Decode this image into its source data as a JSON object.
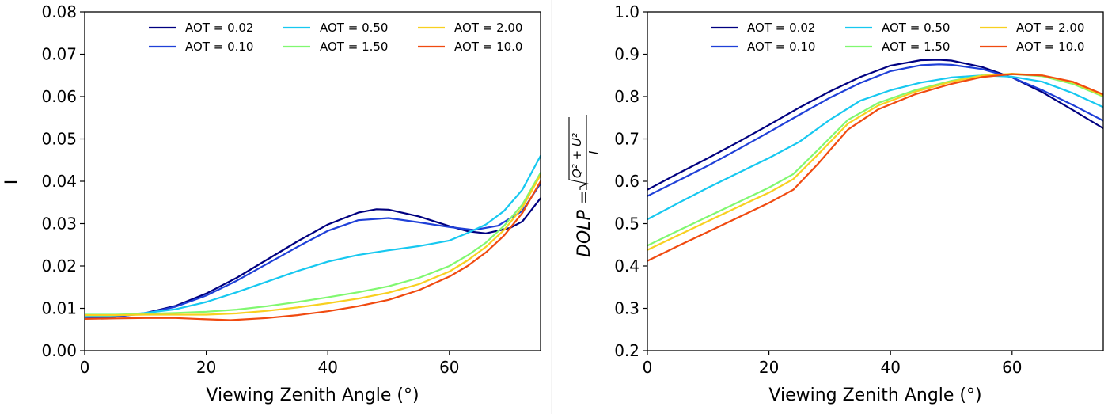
{
  "chart_data": [
    {
      "type": "line",
      "xlabel": "Viewing Zenith Angle (°)",
      "ylabel": "I",
      "xlim": [
        0,
        75
      ],
      "ylim": [
        0.0,
        0.08
      ],
      "xticks": [
        "0",
        "20",
        "40",
        "60"
      ],
      "yticks": [
        "0.00",
        "0.01",
        "0.02",
        "0.03",
        "0.04",
        "0.05",
        "0.06",
        "0.07",
        "0.08"
      ],
      "grid": false,
      "legend": "top-right",
      "series": [
        {
          "name": "AOT = 0.02",
          "color": "#000080",
          "x": [
            0,
            5,
            10,
            15,
            20,
            25,
            30,
            35,
            40,
            45,
            48,
            50,
            55,
            60,
            63,
            66,
            70,
            72,
            75
          ],
          "y": [
            0.0077,
            0.008,
            0.0089,
            0.0106,
            0.0135,
            0.0172,
            0.0215,
            0.0258,
            0.0298,
            0.0326,
            0.0334,
            0.0333,
            0.0317,
            0.0294,
            0.0282,
            0.0277,
            0.029,
            0.0305,
            0.036
          ]
        },
        {
          "name": "AOT = 0.10",
          "color": "#1f40d8",
          "x": [
            0,
            5,
            10,
            15,
            20,
            25,
            30,
            35,
            40,
            45,
            50,
            55,
            60,
            64,
            68,
            72,
            75
          ],
          "y": [
            0.0077,
            0.008,
            0.0088,
            0.0104,
            0.013,
            0.0165,
            0.0205,
            0.0245,
            0.0283,
            0.0308,
            0.0313,
            0.0303,
            0.0292,
            0.0285,
            0.0295,
            0.033,
            0.0395
          ]
        },
        {
          "name": "AOT = 0.50",
          "color": "#17c8f0",
          "x": [
            0,
            5,
            10,
            15,
            20,
            25,
            30,
            35,
            40,
            45,
            50,
            55,
            60,
            63,
            66,
            69,
            72,
            75
          ],
          "y": [
            0.008,
            0.0083,
            0.0089,
            0.0098,
            0.0115,
            0.0138,
            0.0163,
            0.0188,
            0.021,
            0.0226,
            0.0237,
            0.0247,
            0.026,
            0.0278,
            0.0298,
            0.033,
            0.038,
            0.046
          ]
        },
        {
          "name": "AOT = 1.50",
          "color": "#80f870",
          "x": [
            0,
            5,
            10,
            15,
            20,
            25,
            30,
            35,
            40,
            45,
            50,
            55,
            60,
            63,
            66,
            69,
            72,
            75
          ],
          "y": [
            0.0085,
            0.0085,
            0.0087,
            0.0089,
            0.0092,
            0.0097,
            0.0105,
            0.0115,
            0.0126,
            0.0138,
            0.0152,
            0.0172,
            0.02,
            0.0225,
            0.0255,
            0.0295,
            0.0345,
            0.042
          ]
        },
        {
          "name": "AOT = 2.00",
          "color": "#f8d020",
          "x": [
            0,
            5,
            10,
            15,
            20,
            25,
            30,
            35,
            40,
            45,
            50,
            55,
            60,
            63,
            66,
            69,
            72,
            75
          ],
          "y": [
            0.0084,
            0.0084,
            0.0085,
            0.0085,
            0.0085,
            0.0088,
            0.0094,
            0.0102,
            0.0112,
            0.0123,
            0.0137,
            0.0157,
            0.0187,
            0.0213,
            0.0245,
            0.0285,
            0.0338,
            0.0415
          ]
        },
        {
          "name": "AOT = 10.0",
          "color": "#f04a10",
          "x": [
            0,
            5,
            10,
            15,
            20,
            24,
            30,
            35,
            40,
            45,
            50,
            55,
            60,
            63,
            66,
            69,
            72,
            75
          ],
          "y": [
            0.0075,
            0.0076,
            0.0077,
            0.0077,
            0.0074,
            0.0072,
            0.0077,
            0.0084,
            0.0093,
            0.0105,
            0.012,
            0.0143,
            0.0175,
            0.02,
            0.0232,
            0.0272,
            0.0325,
            0.04
          ]
        }
      ]
    },
    {
      "type": "line",
      "xlabel": "Viewing Zenith Angle (°)",
      "ylabel": "DOLP =",
      "ylabel_fraction": {
        "numerator": "Q² + U²",
        "denominator": "I"
      },
      "xlim": [
        0,
        75
      ],
      "ylim": [
        0.2,
        1.0
      ],
      "xticks": [
        "0",
        "20",
        "40",
        "60"
      ],
      "yticks": [
        "0.2",
        "0.3",
        "0.4",
        "0.5",
        "0.6",
        "0.7",
        "0.8",
        "0.9",
        "1.0"
      ],
      "grid": false,
      "legend": "top-right",
      "series": [
        {
          "name": "AOT = 0.02",
          "color": "#000080",
          "x": [
            0,
            5,
            10,
            15,
            20,
            25,
            30,
            35,
            40,
            45,
            48,
            50,
            55,
            60,
            65,
            70,
            75
          ],
          "y": [
            0.58,
            0.618,
            0.655,
            0.693,
            0.733,
            0.774,
            0.812,
            0.846,
            0.873,
            0.886,
            0.887,
            0.885,
            0.87,
            0.845,
            0.81,
            0.768,
            0.725
          ]
        },
        {
          "name": "AOT = 0.10",
          "color": "#1f40d8",
          "x": [
            0,
            5,
            10,
            15,
            20,
            25,
            30,
            35,
            40,
            45,
            48,
            50,
            55,
            60,
            65,
            70,
            75
          ],
          "y": [
            0.565,
            0.601,
            0.637,
            0.676,
            0.716,
            0.757,
            0.797,
            0.832,
            0.86,
            0.874,
            0.876,
            0.875,
            0.865,
            0.845,
            0.815,
            0.78,
            0.743
          ]
        },
        {
          "name": "AOT = 0.50",
          "color": "#17c8f0",
          "x": [
            0,
            5,
            10,
            15,
            20,
            25,
            30,
            35,
            40,
            45,
            50,
            55,
            60,
            65,
            70,
            75
          ],
          "y": [
            0.51,
            0.548,
            0.585,
            0.62,
            0.655,
            0.693,
            0.745,
            0.79,
            0.815,
            0.833,
            0.845,
            0.85,
            0.847,
            0.835,
            0.808,
            0.775
          ]
        },
        {
          "name": "AOT = 1.50",
          "color": "#80f870",
          "x": [
            0,
            5,
            10,
            15,
            20,
            24,
            28,
            33,
            38,
            44,
            50,
            55,
            60,
            65,
            70,
            75
          ],
          "y": [
            0.448,
            0.483,
            0.517,
            0.551,
            0.585,
            0.617,
            0.673,
            0.745,
            0.785,
            0.815,
            0.837,
            0.85,
            0.853,
            0.848,
            0.83,
            0.8
          ]
        },
        {
          "name": "AOT = 2.00",
          "color": "#f8d020",
          "x": [
            0,
            5,
            10,
            15,
            20,
            24,
            28,
            33,
            38,
            44,
            50,
            55,
            60,
            65,
            70,
            75
          ],
          "y": [
            0.438,
            0.472,
            0.506,
            0.54,
            0.573,
            0.605,
            0.662,
            0.736,
            0.779,
            0.811,
            0.835,
            0.849,
            0.854,
            0.85,
            0.833,
            0.802
          ]
        },
        {
          "name": "AOT = 10.0",
          "color": "#f04a10",
          "x": [
            0,
            5,
            10,
            15,
            20,
            24,
            28,
            33,
            38,
            44,
            50,
            55,
            60,
            65,
            70,
            75
          ],
          "y": [
            0.412,
            0.447,
            0.481,
            0.515,
            0.549,
            0.58,
            0.64,
            0.722,
            0.77,
            0.805,
            0.83,
            0.846,
            0.853,
            0.85,
            0.835,
            0.805
          ]
        }
      ]
    }
  ]
}
